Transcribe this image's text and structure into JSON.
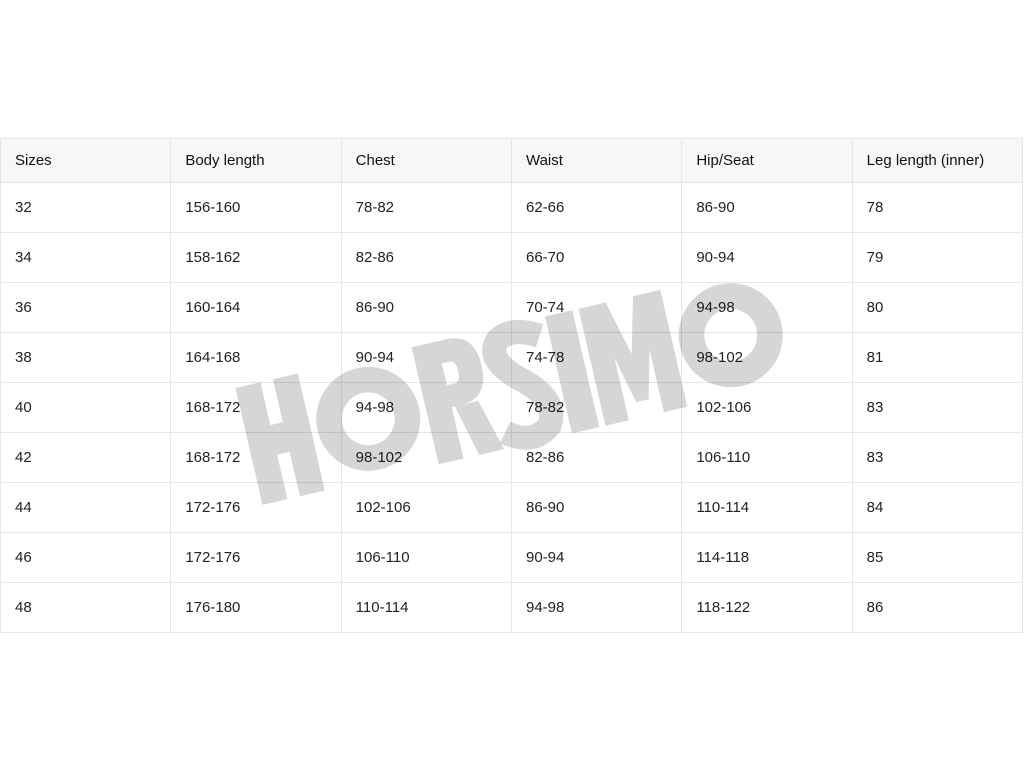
{
  "table": {
    "headers": [
      "Sizes",
      "Body length",
      "Chest",
      "Waist",
      "Hip/Seat",
      "Leg length (inner)"
    ],
    "rows": [
      [
        "32",
        "156-160",
        "78-82",
        "62-66",
        "86-90",
        "78"
      ],
      [
        "34",
        "158-162",
        "82-86",
        "66-70",
        "90-94",
        "79"
      ],
      [
        "36",
        "160-164",
        "86-90",
        "70-74",
        "94-98",
        "80"
      ],
      [
        "38",
        "164-168",
        "90-94",
        "74-78",
        "98-102",
        "81"
      ],
      [
        "40",
        "168-172",
        "94-98",
        "78-82",
        "102-106",
        "83"
      ],
      [
        "42",
        "168-172",
        "98-102",
        "82-86",
        "106-110",
        "83"
      ],
      [
        "44",
        "172-176",
        "102-106",
        "86-90",
        "110-114",
        "84"
      ],
      [
        "46",
        "172-176",
        "106-110",
        "90-94",
        "114-118",
        "85"
      ],
      [
        "48",
        "176-180",
        "110-114",
        "94-98",
        "118-122",
        "86"
      ]
    ]
  },
  "watermark": {
    "text": "HORSIMO",
    "color": "#d6d6d6"
  }
}
